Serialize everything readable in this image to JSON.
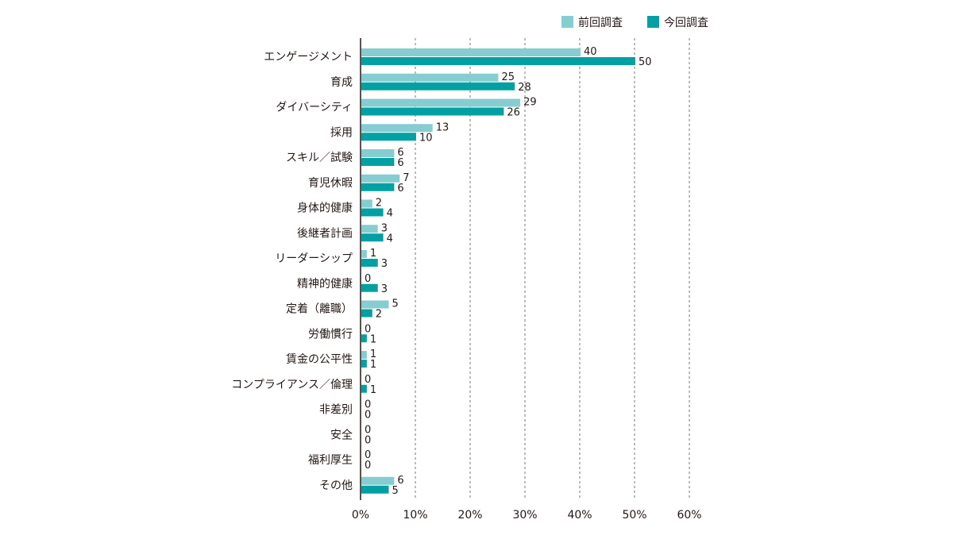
{
  "chart_data": {
    "type": "bar",
    "orientation": "horizontal",
    "categories": [
      "エンゲージメント",
      "育成",
      "ダイバーシティ",
      "採用",
      "スキル／試験",
      "育児休暇",
      "身体的健康",
      "後継者計画",
      "リーダーシップ",
      "精神的健康",
      "定着（離職）",
      "労働慣行",
      "賃金の公平性",
      "コンプライアンス／倫理",
      "非差別",
      "安全",
      "福利厚生",
      "その他"
    ],
    "series": [
      {
        "name": "前回調査",
        "color": "#86cdd1",
        "values": [
          40,
          25,
          29,
          13,
          6,
          7,
          2,
          3,
          1,
          0,
          5,
          0,
          1,
          0,
          0,
          0,
          0,
          6
        ]
      },
      {
        "name": "今回調査",
        "color": "#00a0a3",
        "values": [
          50,
          28,
          26,
          10,
          6,
          6,
          4,
          4,
          3,
          3,
          2,
          1,
          1,
          1,
          0,
          0,
          0,
          5
        ]
      }
    ],
    "xlim": [
      0,
      60
    ],
    "xticks": [
      "0%",
      "10%",
      "20%",
      "30%",
      "40%",
      "50%",
      "60%"
    ],
    "grid": "vertical-dashed",
    "legend": "top-right"
  }
}
